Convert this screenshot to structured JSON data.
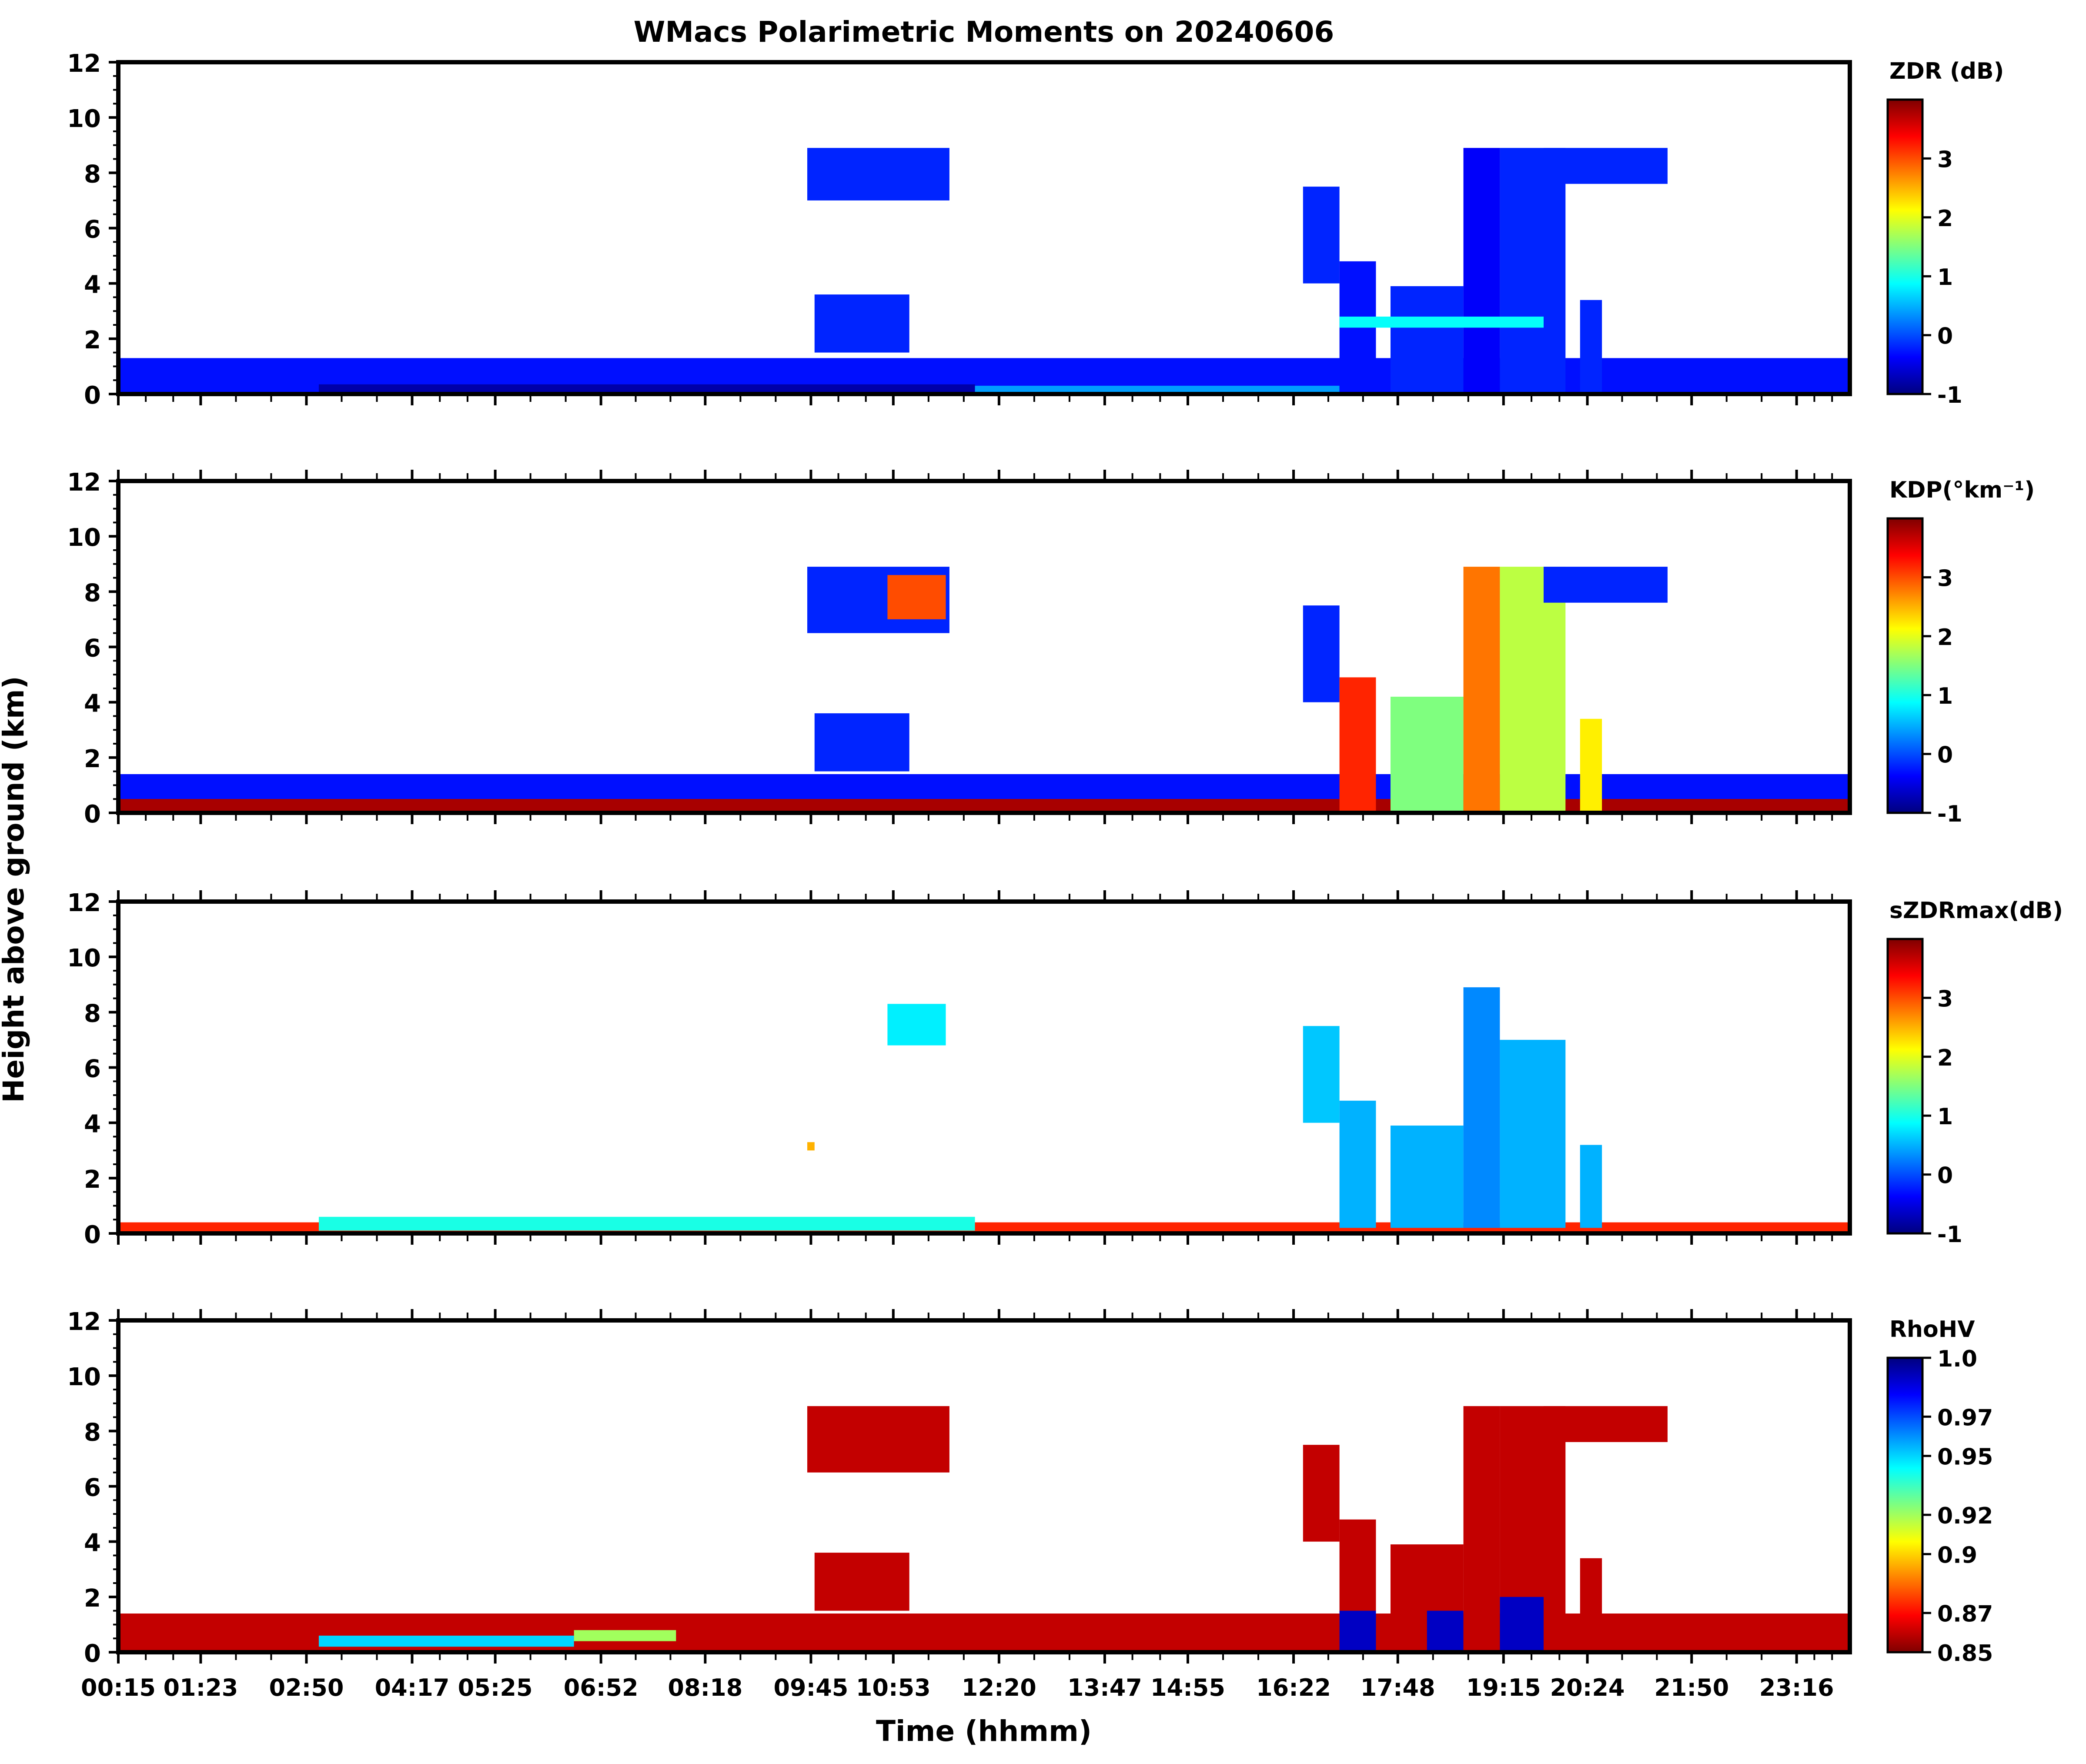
{
  "figure": {
    "title": "WMacs Polarimetric Moments on 20240606",
    "ylabel": "Height above ground (km)",
    "xlabel": "Time (hhmm)"
  },
  "colormap": [
    "#00007f",
    "#0000ff",
    "#007fff",
    "#00ffff",
    "#7fff7f",
    "#ffff00",
    "#ff7f00",
    "#ff0000",
    "#7f0000"
  ],
  "chart_data": [
    {
      "type": "heatmap",
      "name": "zdr",
      "colorbar_label": "ZDR (dB)",
      "ylim": [
        0,
        12
      ],
      "yticks": [
        "0",
        "2",
        "4",
        "6",
        "8",
        "10",
        "12"
      ],
      "clim": [
        -1,
        4
      ],
      "cbar_ticks": [
        "-1",
        "0",
        "1",
        "2",
        "3"
      ],
      "cbar_tick_values": [
        -1,
        0,
        1,
        2,
        3
      ],
      "cmap_reversed": false,
      "xtick_labels_shown": false,
      "features": [
        {
          "t0": 0.0,
          "t1": 24.0,
          "h0": 0.0,
          "h1": 1.3,
          "v": -0.3
        },
        {
          "t0": 3.0,
          "t1": 12.0,
          "h0": 0.0,
          "h1": 0.35,
          "v": -0.8
        },
        {
          "t0": 12.0,
          "t1": 17.0,
          "h0": 0.0,
          "h1": 0.3,
          "v": 0.4
        },
        {
          "t0": 9.7,
          "t1": 11.65,
          "h0": 7.0,
          "h1": 8.9,
          "v": -0.2
        },
        {
          "t0": 9.8,
          "t1": 11.1,
          "h0": 1.5,
          "h1": 3.6,
          "v": -0.2
        },
        {
          "t0": 16.5,
          "t1": 17.0,
          "h0": 4.0,
          "h1": 7.5,
          "v": -0.2
        },
        {
          "t0": 17.0,
          "t1": 17.5,
          "h0": 0.0,
          "h1": 4.8,
          "v": -0.3
        },
        {
          "t0": 17.7,
          "t1": 18.7,
          "h0": 0.0,
          "h1": 3.9,
          "v": -0.2
        },
        {
          "t0": 18.7,
          "t1": 19.2,
          "h0": 0.0,
          "h1": 8.9,
          "v": -0.4
        },
        {
          "t0": 19.2,
          "t1": 20.1,
          "h0": 0.0,
          "h1": 8.9,
          "v": -0.2
        },
        {
          "t0": 20.3,
          "t1": 20.6,
          "h0": 0.0,
          "h1": 3.4,
          "v": -0.2
        },
        {
          "t0": 19.8,
          "t1": 21.5,
          "h0": 7.6,
          "h1": 8.9,
          "v": -0.2
        },
        {
          "t0": 17.0,
          "t1": 19.8,
          "h0": 2.4,
          "h1": 2.8,
          "v": 0.9
        }
      ]
    },
    {
      "type": "heatmap",
      "name": "kdp",
      "colorbar_label": "KDP(°km⁻¹)",
      "ylim": [
        0,
        12
      ],
      "yticks": [
        "0",
        "2",
        "4",
        "6",
        "8",
        "10",
        "12"
      ],
      "clim": [
        -1,
        4
      ],
      "cbar_ticks": [
        "-1",
        "0",
        "1",
        "2",
        "3"
      ],
      "cbar_tick_values": [
        -1,
        0,
        1,
        2,
        3
      ],
      "cmap_reversed": false,
      "xtick_labels_shown": false,
      "features": [
        {
          "t0": 0.0,
          "t1": 24.0,
          "h0": 0.0,
          "h1": 1.4,
          "v": -0.3
        },
        {
          "t0": 0.0,
          "t1": 24.0,
          "h0": 0.0,
          "h1": 0.5,
          "v": 3.8
        },
        {
          "t0": 9.7,
          "t1": 11.65,
          "h0": 6.5,
          "h1": 8.9,
          "v": -0.2
        },
        {
          "t0": 10.8,
          "t1": 11.6,
          "h0": 7.0,
          "h1": 8.6,
          "v": 3.0
        },
        {
          "t0": 9.8,
          "t1": 11.1,
          "h0": 1.5,
          "h1": 3.6,
          "v": -0.2
        },
        {
          "t0": 16.5,
          "t1": 17.0,
          "h0": 4.0,
          "h1": 7.5,
          "v": -0.2
        },
        {
          "t0": 17.0,
          "t1": 17.5,
          "h0": 0.0,
          "h1": 4.9,
          "v": 3.2
        },
        {
          "t0": 17.7,
          "t1": 18.7,
          "h0": 0.0,
          "h1": 4.2,
          "v": 1.5
        },
        {
          "t0": 18.7,
          "t1": 19.2,
          "h0": 0.0,
          "h1": 8.9,
          "v": 2.8
        },
        {
          "t0": 19.2,
          "t1": 20.1,
          "h0": 0.0,
          "h1": 8.9,
          "v": 1.8
        },
        {
          "t0": 20.3,
          "t1": 20.6,
          "h0": 0.0,
          "h1": 3.4,
          "v": 2.2
        },
        {
          "t0": 19.8,
          "t1": 21.5,
          "h0": 7.6,
          "h1": 8.9,
          "v": -0.2
        }
      ]
    },
    {
      "type": "heatmap",
      "name": "szdrmax",
      "colorbar_label": "sZDRmax(dB)",
      "ylim": [
        0,
        12
      ],
      "yticks": [
        "0",
        "2",
        "4",
        "6",
        "8",
        "10",
        "12"
      ],
      "clim": [
        -1,
        4
      ],
      "cbar_ticks": [
        "-1",
        "0",
        "1",
        "2",
        "3"
      ],
      "cbar_tick_values": [
        -1,
        0,
        1,
        2,
        3
      ],
      "cmap_reversed": false,
      "xtick_labels_shown": false,
      "features": [
        {
          "t0": 0.0,
          "t1": 24.0,
          "h0": 0.0,
          "h1": 0.4,
          "v": 3.2
        },
        {
          "t0": 3.0,
          "t1": 12.0,
          "h0": 0.1,
          "h1": 0.6,
          "v": 1.0
        },
        {
          "t0": 10.8,
          "t1": 11.6,
          "h0": 6.8,
          "h1": 8.3,
          "v": 0.8
        },
        {
          "t0": 16.5,
          "t1": 17.0,
          "h0": 4.0,
          "h1": 7.5,
          "v": 0.6
        },
        {
          "t0": 17.0,
          "t1": 17.5,
          "h0": 0.2,
          "h1": 4.8,
          "v": 0.5
        },
        {
          "t0": 17.7,
          "t1": 18.7,
          "h0": 0.2,
          "h1": 3.9,
          "v": 0.5
        },
        {
          "t0": 18.7,
          "t1": 19.2,
          "h0": 0.2,
          "h1": 8.9,
          "v": 0.3
        },
        {
          "t0": 19.2,
          "t1": 20.1,
          "h0": 0.2,
          "h1": 7.0,
          "v": 0.5
        },
        {
          "t0": 20.3,
          "t1": 20.6,
          "h0": 0.2,
          "h1": 3.2,
          "v": 0.5
        },
        {
          "t0": 9.7,
          "t1": 9.8,
          "h0": 3.0,
          "h1": 3.3,
          "v": 2.5
        }
      ]
    },
    {
      "type": "heatmap",
      "name": "rhohv",
      "colorbar_label": "RhoHV",
      "ylim": [
        0,
        12
      ],
      "yticks": [
        "0",
        "2",
        "4",
        "6",
        "8",
        "10",
        "12"
      ],
      "clim": [
        0.85,
        1.0
      ],
      "cbar_ticks": [
        "0.85",
        "0.87",
        "0.9",
        "0.92",
        "0.95",
        "0.97",
        "1.0"
      ],
      "cbar_tick_values": [
        0.85,
        0.87,
        0.9,
        0.92,
        0.95,
        0.97,
        1.0
      ],
      "cmap_reversed": true,
      "xtick_labels_shown": true,
      "features": [
        {
          "t0": 0.0,
          "t1": 24.0,
          "h0": 0.0,
          "h1": 1.4,
          "v": 0.86
        },
        {
          "t0": 3.0,
          "t1": 6.5,
          "h0": 0.2,
          "h1": 0.6,
          "v": 0.95
        },
        {
          "t0": 6.5,
          "t1": 7.9,
          "h0": 0.4,
          "h1": 0.8,
          "v": 0.92
        },
        {
          "t0": 9.7,
          "t1": 11.65,
          "h0": 6.5,
          "h1": 8.9,
          "v": 0.86
        },
        {
          "t0": 9.8,
          "t1": 11.1,
          "h0": 1.5,
          "h1": 3.6,
          "v": 0.86
        },
        {
          "t0": 16.5,
          "t1": 17.0,
          "h0": 4.0,
          "h1": 7.5,
          "v": 0.86
        },
        {
          "t0": 17.0,
          "t1": 17.5,
          "h0": 0.0,
          "h1": 4.8,
          "v": 0.86
        },
        {
          "t0": 17.0,
          "t1": 17.5,
          "h0": 0.0,
          "h1": 1.5,
          "v": 0.99
        },
        {
          "t0": 17.7,
          "t1": 18.7,
          "h0": 0.0,
          "h1": 3.9,
          "v": 0.86
        },
        {
          "t0": 18.2,
          "t1": 18.7,
          "h0": 0.0,
          "h1": 1.5,
          "v": 0.99
        },
        {
          "t0": 18.7,
          "t1": 19.2,
          "h0": 0.0,
          "h1": 8.9,
          "v": 0.86
        },
        {
          "t0": 19.2,
          "t1": 20.1,
          "h0": 0.0,
          "h1": 8.9,
          "v": 0.86
        },
        {
          "t0": 19.2,
          "t1": 19.8,
          "h0": 0.0,
          "h1": 2.0,
          "v": 0.99
        },
        {
          "t0": 20.3,
          "t1": 20.6,
          "h0": 0.0,
          "h1": 3.4,
          "v": 0.86
        },
        {
          "t0": 19.8,
          "t1": 21.5,
          "h0": 7.6,
          "h1": 8.9,
          "v": 0.86
        }
      ]
    }
  ],
  "time_axis": {
    "range_hours": [
      0.25,
      24.0
    ],
    "tick_labels": [
      "00:15",
      "01:23",
      "02:50",
      "04:17",
      "05:25",
      "06:52",
      "08:18",
      "09:45",
      "10:53",
      "12:20",
      "13:47",
      "14:55",
      "16:22",
      "17:48",
      "19:15",
      "20:24",
      "21:50",
      "23:16"
    ],
    "tick_hours": [
      0.25,
      1.38,
      2.83,
      4.28,
      5.42,
      6.87,
      8.3,
      9.75,
      10.88,
      12.33,
      13.78,
      14.92,
      16.37,
      17.8,
      19.25,
      20.4,
      21.83,
      23.27
    ]
  }
}
